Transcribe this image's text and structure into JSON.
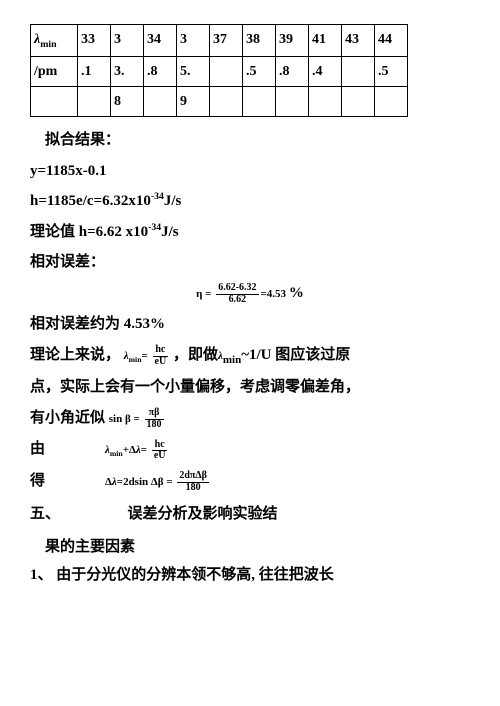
{
  "table": {
    "row1": {
      "hdr": "λmin",
      "c": [
        "33",
        "3",
        "34",
        "3",
        "37",
        "38",
        "39",
        "41",
        "43",
        "44"
      ]
    },
    "row2": {
      "hdr": "/pm",
      "c": [
        ".1",
        "3.",
        ".8",
        "5.",
        "",
        ".5",
        ".8",
        ".4",
        "",
        ".5"
      ]
    },
    "row3": {
      "hdr": "",
      "c": [
        "",
        "8",
        "",
        "9",
        "",
        "",
        "",
        "",
        "",
        ""
      ]
    }
  },
  "lines": {
    "fit_label": "拟合结果：",
    "fit_eq": "y=1185x-0.1",
    "h_eq_prefix": "h=1185e/c=6.32x10",
    "h_eq_exp": "-34",
    "h_eq_unit": "J/s",
    "theory_prefix": "理论值 h=6.62 x10",
    "theory_exp": "-34",
    "theory_unit": "J/s",
    "rel_err_label": "相对误差：",
    "eta_eq_lhs": "η =",
    "eta_num": "6.62-6.32",
    "eta_den": "6.62",
    "eta_rhs": "=4.53",
    "percent": "%",
    "rel_err_approx": "相对误差约为 4.53%",
    "theory_line_1a": "理论上来说，",
    "lambda_min_eq_lhs": "λmin =",
    "hc": "hc",
    "eU": "eU",
    "theory_line_1b": "，即做",
    "lambda_min": "λmin",
    "theory_line_1c": "~1/U 图应该过原",
    "theory_line_2": "点，实际上会有一个小量偏移，考虑调零偏差角，",
    "theory_line_3a": "有小角近似  ",
    "sinb_eq": "sin β =",
    "pib": "πβ",
    "d180": "180",
    "you_label": "由",
    "lambda_plus_eq": "λmin+Δλ=",
    "de_label": "得",
    "delta_eq_lhs": "Δλ=2dsin Δβ =",
    "delta_num": "2dπΔβ",
    "delta_den": "180",
    "section5a": "五、",
    "section5b": "误差分析及影响实验结",
    "section5c": "果的主要因素",
    "item1": "1、 由于分光仪的分辨本领不够高, 往往把波长"
  }
}
